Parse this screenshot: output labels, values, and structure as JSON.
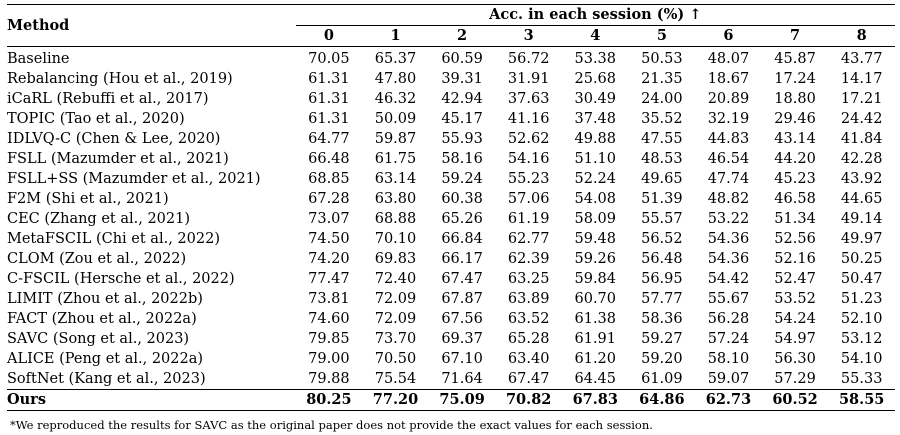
{
  "table": {
    "method_header": "Method",
    "acc_header": "Acc. in each session (%) ↑",
    "sessions": [
      "0",
      "1",
      "2",
      "3",
      "4",
      "5",
      "6",
      "7",
      "8"
    ],
    "rows": [
      {
        "method": "Baseline",
        "values": [
          "70.05",
          "65.37",
          "60.59",
          "56.72",
          "53.38",
          "50.53",
          "48.07",
          "45.87",
          "43.77"
        ]
      },
      {
        "method": "Rebalancing (Hou et al., 2019)",
        "values": [
          "61.31",
          "47.80",
          "39.31",
          "31.91",
          "25.68",
          "21.35",
          "18.67",
          "17.24",
          "14.17"
        ]
      },
      {
        "method": "iCaRL (Rebuffi et al., 2017)",
        "values": [
          "61.31",
          "46.32",
          "42.94",
          "37.63",
          "30.49",
          "24.00",
          "20.89",
          "18.80",
          "17.21"
        ]
      },
      {
        "method": "TOPIC (Tao et al., 2020)",
        "values": [
          "61.31",
          "50.09",
          "45.17",
          "41.16",
          "37.48",
          "35.52",
          "32.19",
          "29.46",
          "24.42"
        ]
      },
      {
        "method": "IDLVQ-C (Chen & Lee, 2020)",
        "values": [
          "64.77",
          "59.87",
          "55.93",
          "52.62",
          "49.88",
          "47.55",
          "44.83",
          "43.14",
          "41.84"
        ]
      },
      {
        "method": "FSLL (Mazumder et al., 2021)",
        "values": [
          "66.48",
          "61.75",
          "58.16",
          "54.16",
          "51.10",
          "48.53",
          "46.54",
          "44.20",
          "42.28"
        ]
      },
      {
        "method": "FSLL+SS (Mazumder et al., 2021)",
        "values": [
          "68.85",
          "63.14",
          "59.24",
          "55.23",
          "52.24",
          "49.65",
          "47.74",
          "45.23",
          "43.92"
        ]
      },
      {
        "method": "F2M (Shi et al., 2021)",
        "values": [
          "67.28",
          "63.80",
          "60.38",
          "57.06",
          "54.08",
          "51.39",
          "48.82",
          "46.58",
          "44.65"
        ]
      },
      {
        "method": "CEC (Zhang et al., 2021)",
        "values": [
          "73.07",
          "68.88",
          "65.26",
          "61.19",
          "58.09",
          "55.57",
          "53.22",
          "51.34",
          "49.14"
        ]
      },
      {
        "method": "MetaFSCIL (Chi et al., 2022)",
        "values": [
          "74.50",
          "70.10",
          "66.84",
          "62.77",
          "59.48",
          "56.52",
          "54.36",
          "52.56",
          "49.97"
        ]
      },
      {
        "method": "CLOM (Zou et al., 2022)",
        "values": [
          "74.20",
          "69.83",
          "66.17",
          "62.39",
          "59.26",
          "56.48",
          "54.36",
          "52.16",
          "50.25"
        ]
      },
      {
        "method": "C-FSCIL (Hersche et al., 2022)",
        "values": [
          "77.47",
          "72.40",
          "67.47",
          "63.25",
          "59.84",
          "56.95",
          "54.42",
          "52.47",
          "50.47"
        ]
      },
      {
        "method": "LIMIT (Zhou et al., 2022b)",
        "values": [
          "73.81",
          "72.09",
          "67.87",
          "63.89",
          "60.70",
          "57.77",
          "55.67",
          "53.52",
          "51.23"
        ]
      },
      {
        "method": "FACT (Zhou et al., 2022a)",
        "values": [
          "74.60",
          "72.09",
          "67.56",
          "63.52",
          "61.38",
          "58.36",
          "56.28",
          "54.24",
          "52.10"
        ]
      },
      {
        "method": "SAVC (Song et al., 2023)",
        "values": [
          "79.85",
          "73.70",
          "69.37",
          "65.28",
          "61.91",
          "59.27",
          "57.24",
          "54.97",
          "53.12"
        ]
      },
      {
        "method": "ALICE (Peng et al., 2022a)",
        "values": [
          "79.00",
          "70.50",
          "67.10",
          "63.40",
          "61.20",
          "59.20",
          "58.10",
          "56.30",
          "54.10"
        ]
      },
      {
        "method": "SoftNet (Kang et al., 2023)",
        "values": [
          "79.88",
          "75.54",
          "71.64",
          "67.47",
          "64.45",
          "61.09",
          "59.07",
          "57.29",
          "55.33"
        ]
      }
    ],
    "ours": {
      "method": "Ours",
      "values": [
        "80.25",
        "77.20",
        "75.09",
        "70.82",
        "67.83",
        "64.86",
        "62.73",
        "60.52",
        "58.55"
      ]
    }
  },
  "footnote": "*We reproduced the results for SAVC as the original paper does not provide the exact values for each session."
}
